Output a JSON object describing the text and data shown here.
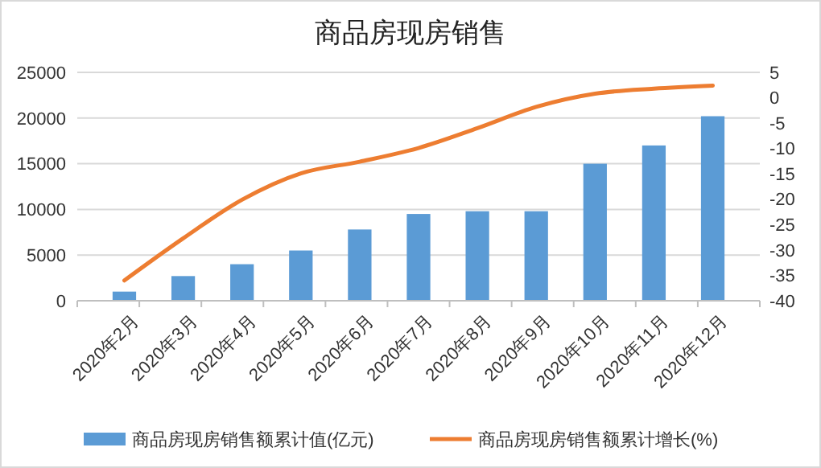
{
  "chart_data": {
    "type": "bar",
    "title": "商品房现房销售",
    "categories": [
      "2020年2月",
      "2020年3月",
      "2020年4月",
      "2020年5月",
      "2020年6月",
      "2020年7月",
      "2020年8月",
      "2020年9月",
      "2020年10月",
      "2020年11月",
      "2020年12月"
    ],
    "series": [
      {
        "name": "商品房现房销售额累计值(亿元)",
        "color": "#5b9bd5",
        "values": [
          1000,
          2700,
          4000,
          5500,
          7800,
          9500,
          9800,
          9800,
          15000,
          17000,
          20200
        ]
      },
      {
        "name": "商品房现房销售额累计增长(%)",
        "type": "line",
        "axis": "y2",
        "color": "#ed7d31",
        "values": [
          -36,
          -27.7,
          -20.1,
          -14.9,
          -12.6,
          -9.9,
          -6,
          -1.8,
          0.8,
          1.8,
          2.4
        ]
      }
    ],
    "ylim": [
      0,
      25000
    ],
    "yticks": [
      0,
      5000,
      10000,
      15000,
      20000,
      25000
    ],
    "y2lim": [
      -40,
      5
    ],
    "y2ticks": [
      -40,
      -35,
      -30,
      -25,
      -20,
      -15,
      -10,
      -5,
      0,
      5
    ],
    "grid": "y",
    "legend": "bottom"
  }
}
